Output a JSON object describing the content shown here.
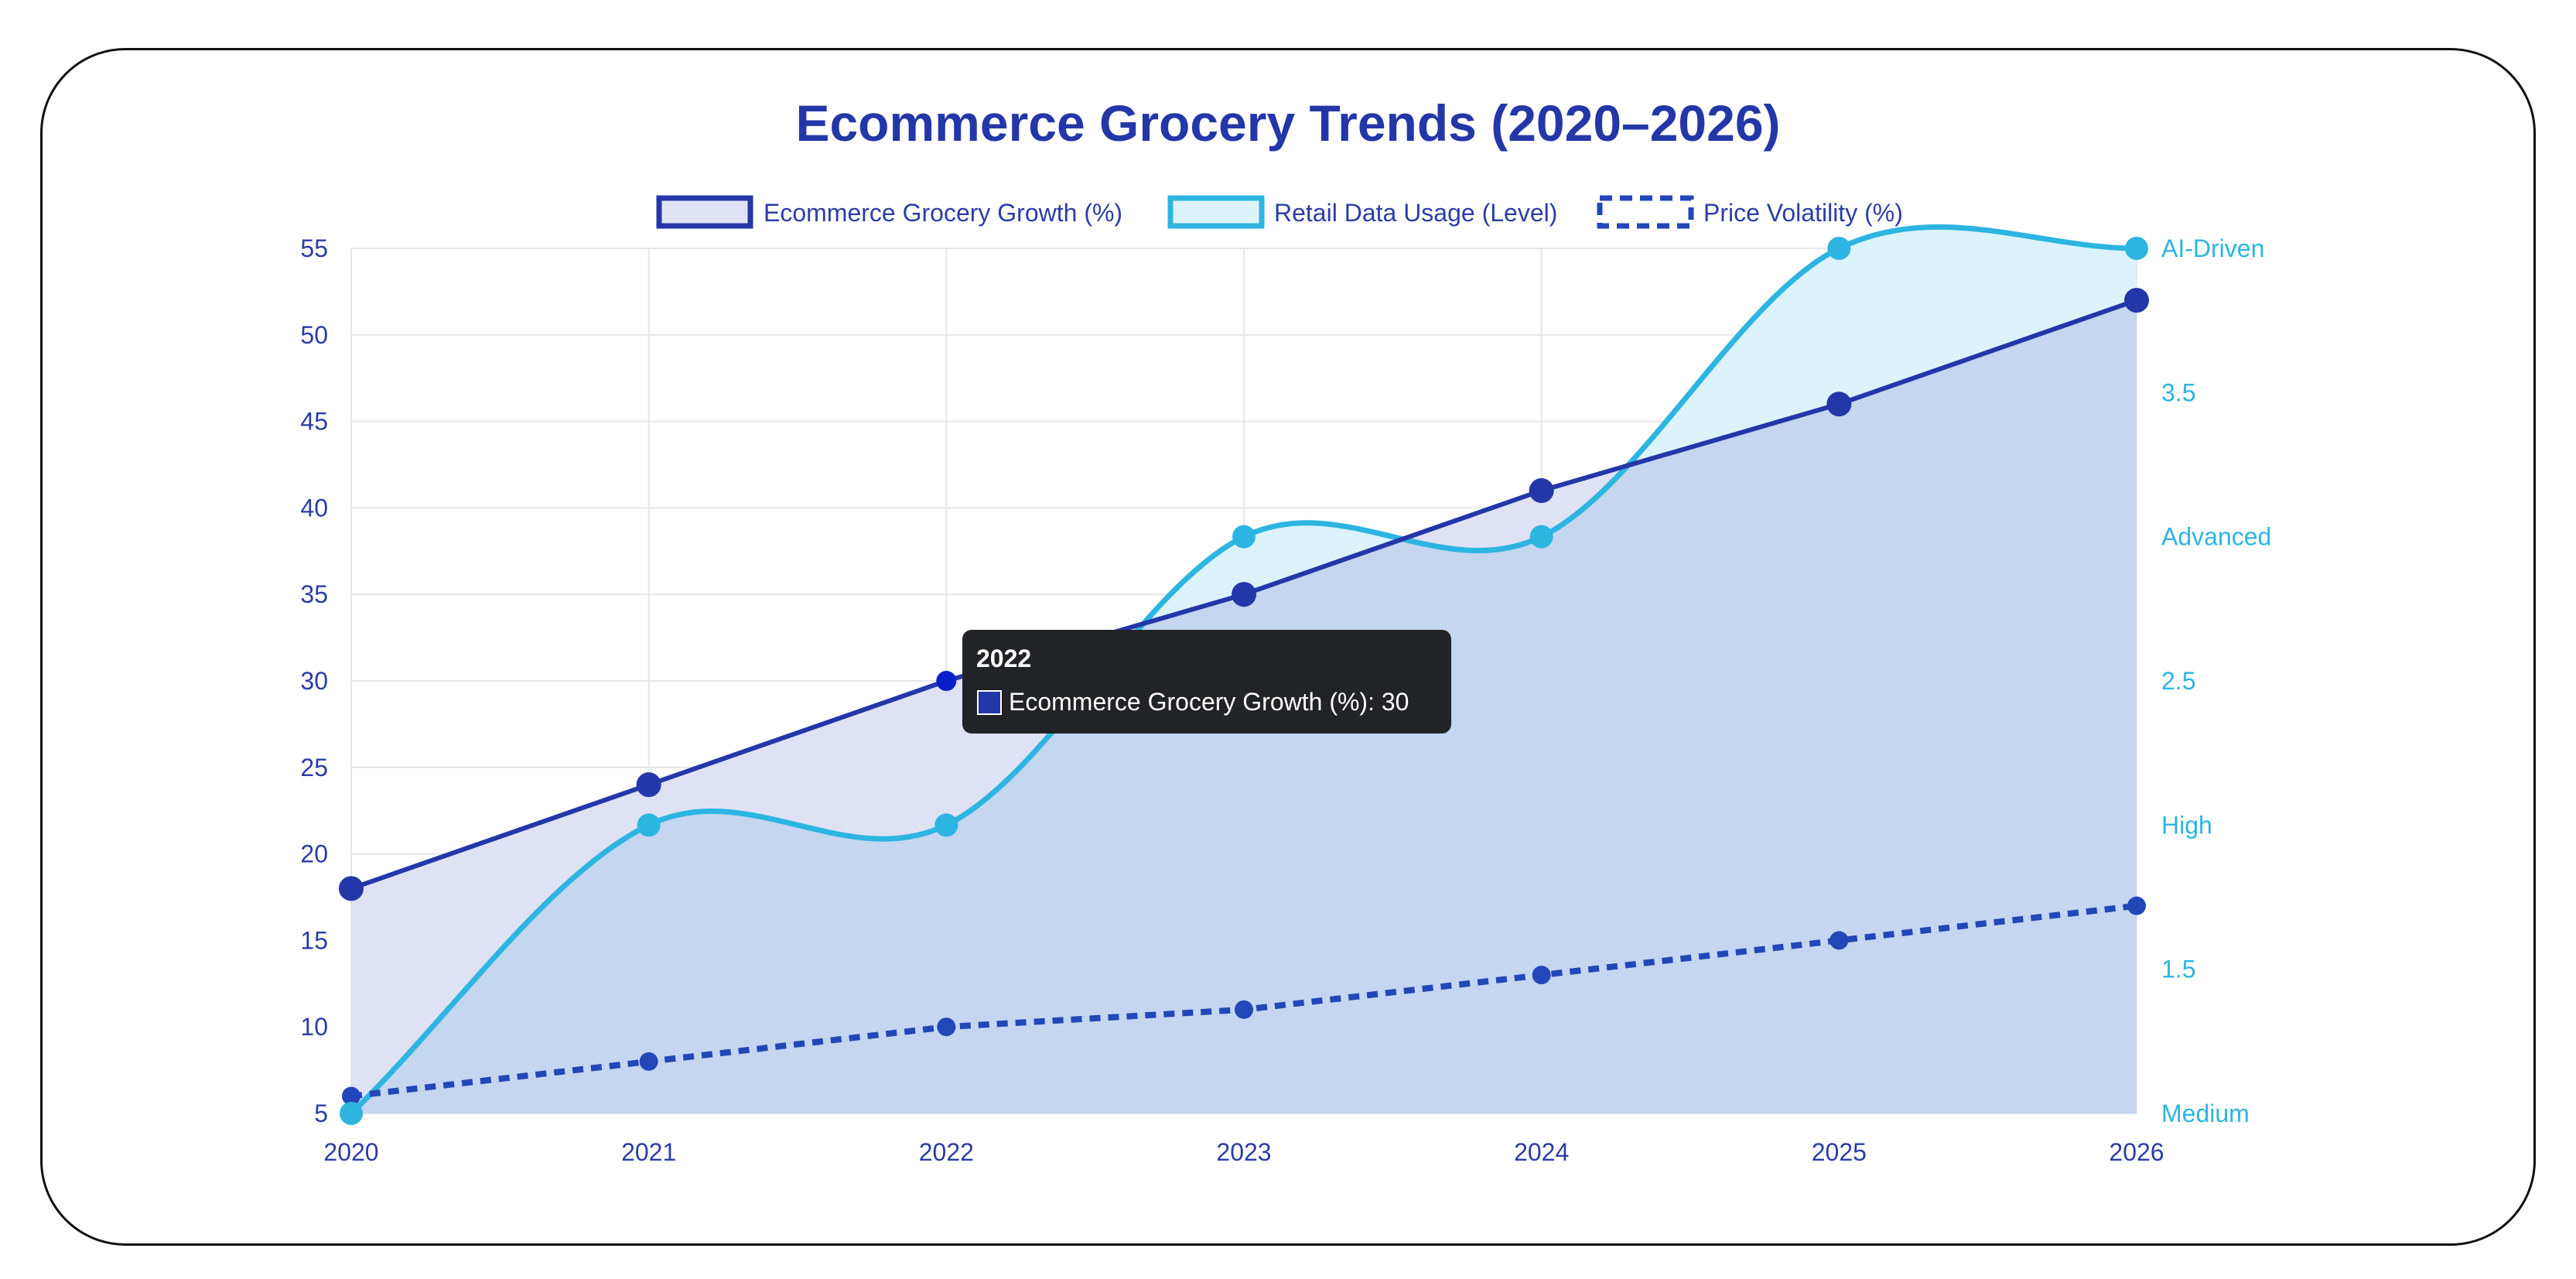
{
  "chart_data": {
    "type": "line",
    "title": "Ecommerce Grocery Trends (2020–2026)",
    "categories": [
      "2020",
      "2021",
      "2022",
      "2023",
      "2024",
      "2025",
      "2026"
    ],
    "y_left": {
      "min": 5,
      "max": 55,
      "step": 5,
      "ticks": [
        "5",
        "10",
        "15",
        "20",
        "25",
        "30",
        "35",
        "40",
        "45",
        "50",
        "55"
      ]
    },
    "y_right": {
      "min": 1,
      "max": 4,
      "step": 0.5,
      "ticks": [
        "Medium",
        "1.5",
        "High",
        "2.5",
        "Advanced",
        "3.5",
        "AI-Driven"
      ]
    },
    "grid": true,
    "legend": {
      "position": "top",
      "items": [
        "Ecommerce Grocery Growth (%)",
        "Retail Data Usage (Level)",
        "Price Volatility (%)"
      ]
    },
    "series": [
      {
        "name": "Ecommerce Grocery Growth (%)",
        "axis": "left",
        "style": "area-line",
        "color": "#2337a8",
        "fill": "#dfe2f4",
        "values": [
          18,
          24,
          30,
          35,
          41,
          46,
          52
        ]
      },
      {
        "name": "Retail Data Usage (Level)",
        "axis": "right",
        "style": "smooth-area-line",
        "color": "#2db5e2",
        "fill": "#dcf3fb",
        "values": [
          1,
          2,
          2,
          3,
          3,
          4,
          4
        ]
      },
      {
        "name": "Price Volatility (%)",
        "axis": "left",
        "style": "dashed-line",
        "color": "#2346b8",
        "values": [
          6,
          8,
          10,
          11,
          13,
          15,
          17
        ]
      }
    ],
    "tooltip": {
      "title": "2022",
      "label": "Ecommerce Grocery Growth (%): 30",
      "series_index": 0,
      "category_index": 2
    }
  }
}
